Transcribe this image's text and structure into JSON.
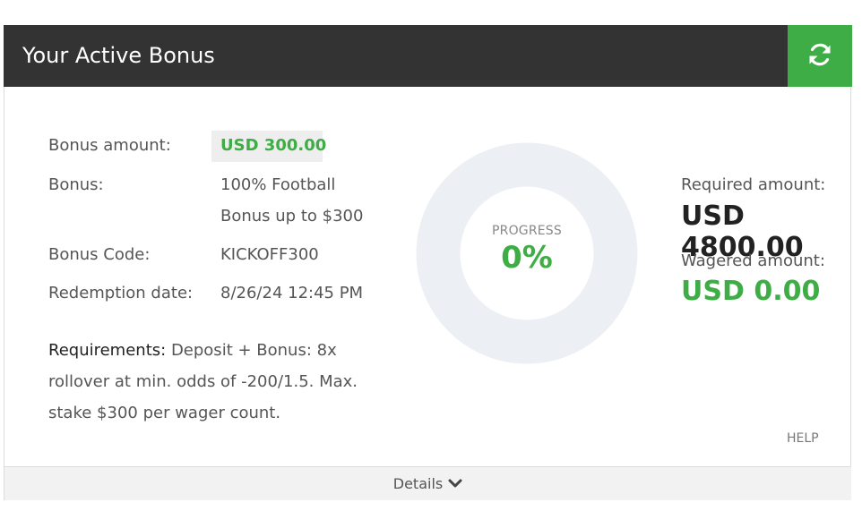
{
  "header": {
    "title": "Your Active Bonus",
    "refresh_icon": "refresh-icon"
  },
  "bonus": {
    "amount_label": "Bonus amount:",
    "amount_value": "USD 300.00",
    "bonus_label": "Bonus:",
    "bonus_value_line1": "100% Football",
    "bonus_value_line2": "Bonus up to $300",
    "code_label": "Bonus Code:",
    "code_value": "KICKOFF300",
    "redemption_label": "Redemption date:",
    "redemption_value": "8/26/24 12:45 PM"
  },
  "requirements": {
    "label": "Requirements:",
    "text": "Deposit + Bonus: 8x rollover at min. odds of -200/1.5. Max. stake $300 per wager count."
  },
  "progress": {
    "label": "PROGRESS",
    "value_text": "0%",
    "fraction": 0.0
  },
  "totals": {
    "required_label": "Required amount:",
    "required_value": "USD 4800.00",
    "wagered_label": "Wagered amount:",
    "wagered_value": "USD 0.00"
  },
  "help_label": "HELP",
  "details": {
    "label": "Details",
    "icon": "chevron-down-icon"
  },
  "colors": {
    "accent": "#3fad46",
    "header_bg": "#333333",
    "ring": "#ecf0f4"
  }
}
